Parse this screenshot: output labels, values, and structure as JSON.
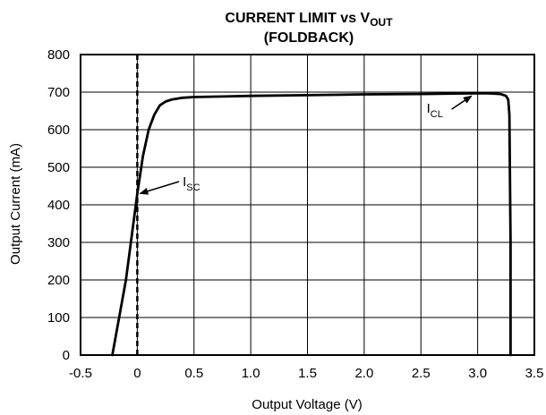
{
  "chart_data": {
    "type": "line",
    "title": {
      "line1_main": "CURRENT LIMIT vs V",
      "line1_sub": "OUT",
      "line2": "(FOLDBACK)"
    },
    "xlabel": "Output Voltage (V)",
    "ylabel": "Output Current (mA)",
    "xlim": [
      -0.5,
      3.5
    ],
    "ylim": [
      0,
      800
    ],
    "x_ticks": [
      -0.5,
      0,
      0.5,
      1.0,
      1.5,
      2.0,
      2.5,
      3.0,
      3.5
    ],
    "x_tick_labels": [
      "-0.5",
      "0",
      "0.5",
      "1.0",
      "1.5",
      "2.0",
      "2.5",
      "3.0",
      "3.5"
    ],
    "y_ticks": [
      0,
      100,
      200,
      300,
      400,
      500,
      600,
      700,
      800
    ],
    "y_tick_labels": [
      "0",
      "100",
      "200",
      "300",
      "400",
      "500",
      "600",
      "700",
      "800"
    ],
    "grid": true,
    "series": [
      {
        "color": "#000000",
        "x": [
          -0.22,
          -0.1,
          0.0,
          0.05,
          0.1,
          0.15,
          0.2,
          0.25,
          0.3,
          0.4,
          0.5,
          1.0,
          1.5,
          2.0,
          2.5,
          3.0,
          3.1,
          3.2,
          3.25,
          3.27,
          3.28,
          3.29,
          3.29
        ],
        "y": [
          0,
          200,
          430,
          530,
          600,
          640,
          665,
          675,
          680,
          685,
          687,
          690,
          692,
          694,
          695,
          697,
          697,
          695,
          690,
          680,
          640,
          300,
          0
        ]
      }
    ],
    "reference_line": {
      "x": 0,
      "style": "dashed"
    },
    "annotations": [
      {
        "id": "isc",
        "main": "I",
        "sub": "SC",
        "point": [
          0.0,
          430
        ],
        "text_at": [
          0.4,
          450
        ]
      },
      {
        "id": "icl",
        "main": "I",
        "sub": "CL",
        "point": [
          2.97,
          697
        ],
        "text_at": [
          2.55,
          645
        ]
      }
    ]
  }
}
